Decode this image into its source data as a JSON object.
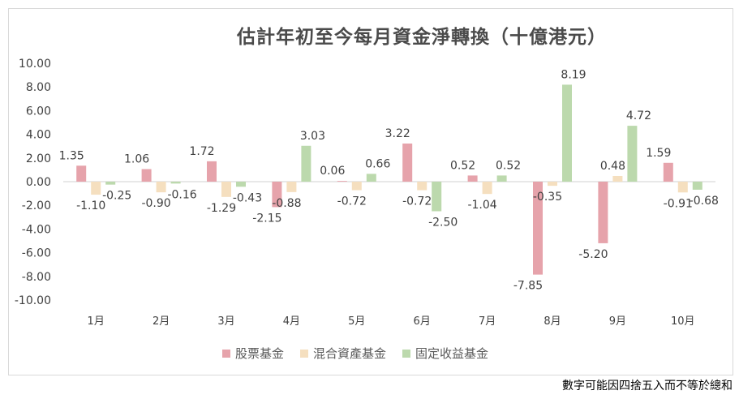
{
  "chart_data": {
    "type": "bar",
    "title": "估計年初至今每月資金淨轉換（十億港元）",
    "categories": [
      "1月",
      "2月",
      "3月",
      "4月",
      "5月",
      "6月",
      "7月",
      "8月",
      "9月",
      "10月"
    ],
    "series": [
      {
        "name": "股票基金",
        "color": "#e6a3ab",
        "values": [
          1.35,
          1.06,
          1.72,
          -2.15,
          0.06,
          3.22,
          0.52,
          -7.85,
          -5.2,
          1.59
        ]
      },
      {
        "name": "混合資產基金",
        "color": "#f5dfbf",
        "values": [
          -1.1,
          -0.9,
          -1.29,
          -0.88,
          -0.72,
          -0.72,
          -1.04,
          -0.35,
          0.48,
          -0.91
        ]
      },
      {
        "name": "固定收益基金",
        "color": "#bcd9ad",
        "values": [
          -0.25,
          -0.16,
          -0.43,
          3.03,
          0.66,
          -2.5,
          0.52,
          8.19,
          4.72,
          -0.68
        ]
      }
    ],
    "ylim": [
      -10,
      10
    ],
    "yticks": [
      "10.00",
      "8.00",
      "6.00",
      "4.00",
      "2.00",
      "0.00",
      "-2.00",
      "-4.00",
      "-6.00",
      "-8.00",
      "-10.00"
    ],
    "legend_position": "bottom",
    "grid": false
  },
  "footnote": "數字可能因四捨五入而不等於總和"
}
